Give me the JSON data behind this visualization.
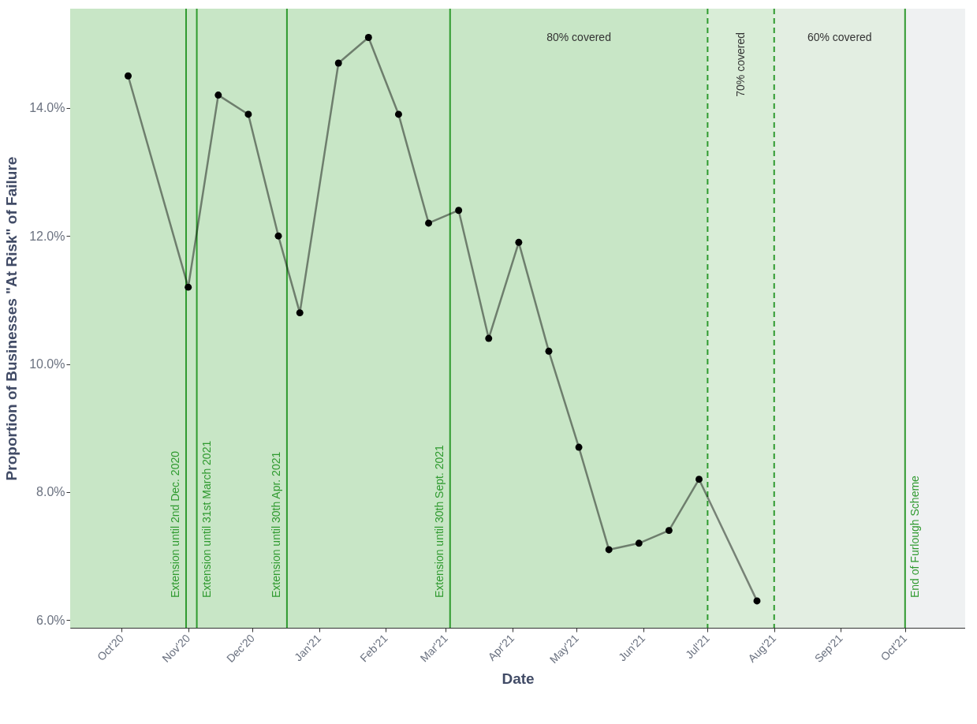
{
  "chart_data": {
    "type": "line",
    "xlabel": "Date",
    "ylabel": "Proportion of Businesses \"At Risk\" of Failure",
    "x": [
      "2020-10-04",
      "2020-11-01",
      "2020-11-15",
      "2020-11-29",
      "2020-12-13",
      "2020-12-23",
      "2021-01-10",
      "2021-01-24",
      "2021-02-07",
      "2021-02-21",
      "2021-03-07",
      "2021-03-21",
      "2021-04-04",
      "2021-04-18",
      "2021-05-02",
      "2021-05-16",
      "2021-05-30",
      "2021-06-13",
      "2021-06-27",
      "2021-07-24"
    ],
    "series": [
      {
        "color": "#000000",
        "values": [
          14.5,
          11.2,
          14.2,
          13.9,
          12.0,
          10.8,
          14.7,
          15.1,
          13.9,
          12.2,
          12.4,
          10.4,
          11.9,
          10.2,
          8.7,
          7.1,
          7.2,
          7.4,
          8.2,
          6.3
        ]
      }
    ],
    "marker": "circle",
    "line_style": "solid",
    "grid": true,
    "xlim": [
      "2020-09-07",
      "2021-10-29"
    ],
    "xticks": [
      {
        "value": "2020-10-01",
        "label": "Oct'20"
      },
      {
        "value": "2020-11-01",
        "label": "Nov'20"
      },
      {
        "value": "2020-12-01",
        "label": "Dec'20"
      },
      {
        "value": "2021-01-01",
        "label": "Jan'21"
      },
      {
        "value": "2021-02-01",
        "label": "Feb'21"
      },
      {
        "value": "2021-03-01",
        "label": "Mar'21"
      },
      {
        "value": "2021-04-01",
        "label": "Apr'21"
      },
      {
        "value": "2021-05-01",
        "label": "May'21"
      },
      {
        "value": "2021-06-01",
        "label": "Jun'21"
      },
      {
        "value": "2021-07-01",
        "label": "Jul'21"
      },
      {
        "value": "2021-08-01",
        "label": "Aug'21"
      },
      {
        "value": "2021-09-01",
        "label": "Sep'21"
      },
      {
        "value": "2021-10-01",
        "label": "Oct'21"
      }
    ],
    "ylim": [
      5.88,
      15.55
    ],
    "yticks": [
      {
        "value": 6,
        "label": "6.0%"
      },
      {
        "value": 8,
        "label": "8.0%"
      },
      {
        "value": 10,
        "label": "10.0%"
      },
      {
        "value": 12,
        "label": "12.0%"
      },
      {
        "value": 14,
        "label": "14.0%"
      }
    ],
    "bands": [
      {
        "axis": "x",
        "from": "2020-09-07",
        "to": "2021-03-03",
        "label": null,
        "color": "#c8e6c6"
      },
      {
        "axis": "x",
        "from": "2021-03-03",
        "to": "2021-07-01",
        "label": "80% covered",
        "color": "#c8e6c6"
      },
      {
        "axis": "x",
        "from": "2021-07-01",
        "to": "2021-08-01",
        "label": "70% covered",
        "color": "#d9edd7"
      },
      {
        "axis": "x",
        "from": "2021-08-01",
        "to": "2021-10-01",
        "label": "60% covered",
        "color": "#e3eee2"
      },
      {
        "axis": "x",
        "from": "2021-10-01",
        "to": "2021-10-29",
        "label": null,
        "color": "#eff1f2"
      }
    ],
    "ref_lines": [
      {
        "axis": "x",
        "value": "2020-10-31",
        "label": "Extension until 2nd Dec. 2020",
        "color": "#2f9a2f",
        "line_style": "solid"
      },
      {
        "axis": "x",
        "value": "2020-11-05",
        "label": "Extension until 31st March 2021",
        "color": "#2f9a2f",
        "line_style": "solid"
      },
      {
        "axis": "x",
        "value": "2020-12-17",
        "label": "Extension until 30th Apr. 2021",
        "color": "#2f9a2f",
        "line_style": "solid"
      },
      {
        "axis": "x",
        "value": "2021-03-03",
        "label": "Extension until 30th Sept. 2021",
        "color": "#2f9a2f",
        "line_style": "solid"
      },
      {
        "axis": "x",
        "value": "2021-07-01",
        "label": null,
        "color": "#2f9a2f",
        "line_style": "dashed"
      },
      {
        "axis": "x",
        "value": "2021-08-01",
        "label": null,
        "color": "#2f9a2f",
        "line_style": "dashed"
      },
      {
        "axis": "x",
        "value": "2021-10-01",
        "label": "End of Furlough Scheme",
        "color": "#2f9a2f",
        "line_style": "solid"
      }
    ]
  }
}
